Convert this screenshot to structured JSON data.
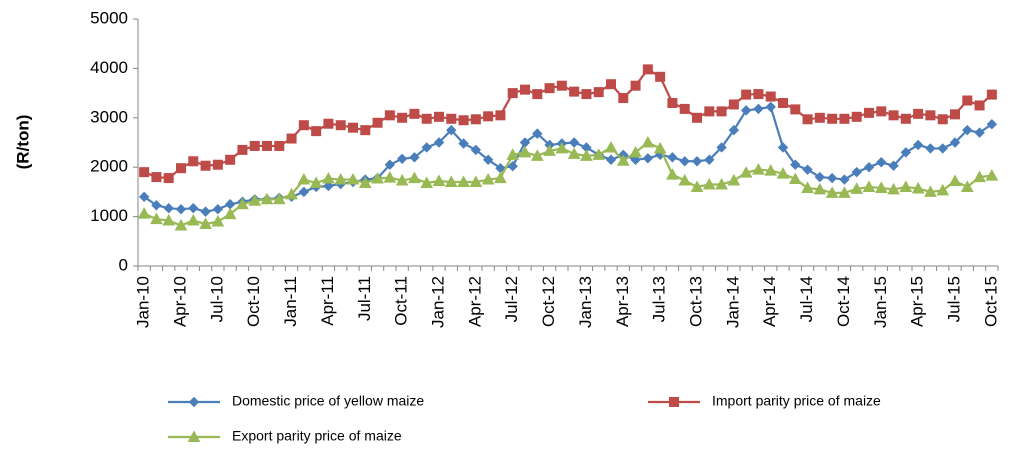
{
  "chart_data": {
    "type": "line",
    "y_label": "(R/ton)",
    "categories": [
      "Jan-10",
      null,
      null,
      "Apr-10",
      null,
      null,
      "Jul-10",
      null,
      null,
      "Oct-10",
      null,
      null,
      "Jan-11",
      null,
      null,
      "Apr-11",
      null,
      null,
      "Jul-11",
      null,
      null,
      "Oct-11",
      null,
      null,
      "Jan-12",
      null,
      null,
      "Apr-12",
      null,
      null,
      "Jul-12",
      null,
      null,
      "Oct-12",
      null,
      null,
      "Jan-13",
      null,
      null,
      "Apr-13",
      null,
      null,
      "Jul-13",
      null,
      null,
      "Oct-13",
      null,
      null,
      "Jan-14",
      null,
      null,
      "Apr-14",
      null,
      null,
      "Jul-14",
      null,
      null,
      "Oct-14",
      null,
      null,
      "Jan-15",
      null,
      null,
      "Apr-15",
      null,
      null,
      "Jul-15",
      null,
      null,
      "Oct-15"
    ],
    "series": [
      {
        "name": "Domestic price of yellow maize",
        "color": "#4a7ebb",
        "marker": "diamond",
        "values": [
          1400,
          1230,
          1170,
          1150,
          1170,
          1100,
          1150,
          1250,
          1300,
          1350,
          1350,
          1380,
          1400,
          1500,
          1600,
          1620,
          1660,
          1700,
          1750,
          1780,
          2050,
          2170,
          2200,
          2400,
          2500,
          2750,
          2480,
          2350,
          2150,
          1980,
          2020,
          2500,
          2680,
          2450,
          2480,
          2500,
          2400,
          2250,
          2150,
          2250,
          2150,
          2180,
          2250,
          2200,
          2120,
          2120,
          2150,
          2400,
          2750,
          3150,
          3180,
          3220,
          2400,
          2050,
          1950,
          1800,
          1780,
          1750,
          1900,
          2000,
          2100,
          2030,
          2300,
          2450,
          2380,
          2380,
          2500,
          2750,
          2700,
          2870
        ]
      },
      {
        "name": "Import parity price of maize",
        "color": "#be4b48",
        "marker": "square",
        "values": [
          1900,
          1800,
          1780,
          1980,
          2120,
          2030,
          2050,
          2150,
          2350,
          2430,
          2430,
          2430,
          2580,
          2850,
          2730,
          2880,
          2850,
          2800,
          2750,
          2900,
          3050,
          3000,
          3080,
          2980,
          3020,
          2980,
          2950,
          2970,
          3030,
          3050,
          3500,
          3570,
          3480,
          3600,
          3650,
          3530,
          3480,
          3520,
          3680,
          3400,
          3650,
          3980,
          3830,
          3300,
          3180,
          3000,
          3130,
          3130,
          3270,
          3470,
          3480,
          3430,
          3300,
          3170,
          2970,
          3000,
          2980,
          2980,
          3020,
          3100,
          3130,
          3050,
          2980,
          3080,
          3050,
          2970,
          3070,
          3350,
          3250,
          3470
        ]
      },
      {
        "name": "Export parity price of maize",
        "color": "#98b954",
        "marker": "triangle",
        "values": [
          1060,
          950,
          920,
          820,
          920,
          850,
          900,
          1050,
          1250,
          1320,
          1350,
          1350,
          1450,
          1750,
          1680,
          1770,
          1750,
          1750,
          1680,
          1770,
          1790,
          1730,
          1780,
          1680,
          1720,
          1700,
          1700,
          1700,
          1750,
          1780,
          2250,
          2300,
          2230,
          2330,
          2380,
          2270,
          2230,
          2250,
          2400,
          2130,
          2300,
          2500,
          2380,
          1850,
          1730,
          1600,
          1650,
          1650,
          1730,
          1890,
          1950,
          1930,
          1870,
          1760,
          1580,
          1550,
          1480,
          1480,
          1560,
          1600,
          1580,
          1550,
          1600,
          1570,
          1500,
          1530,
          1720,
          1600,
          1800,
          1830
        ]
      }
    ],
    "ylim": [
      0,
      5000
    ],
    "yticks": [
      0,
      1000,
      2000,
      3000,
      4000,
      5000
    ],
    "grid": false,
    "legend": "bottom"
  }
}
